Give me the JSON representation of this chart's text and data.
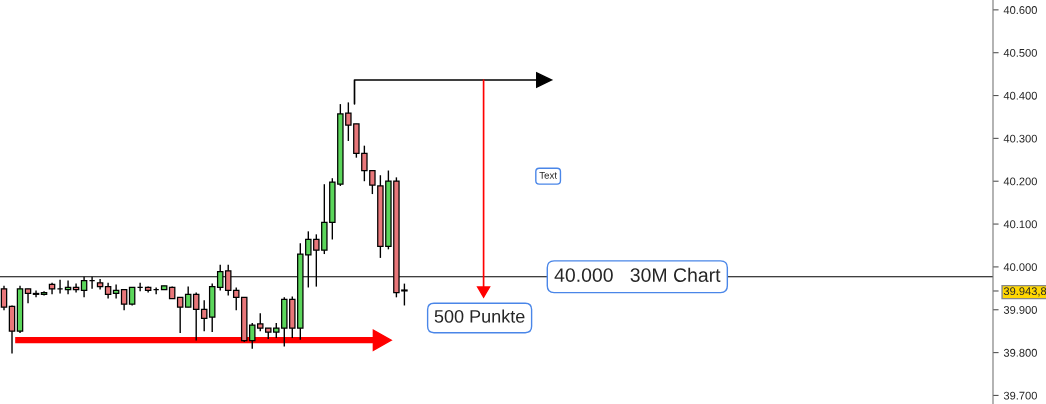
{
  "chart_data": {
    "type": "candlestick",
    "categories": [
      null,
      null,
      null,
      null,
      null,
      null,
      null,
      null,
      null,
      null,
      null,
      null,
      null,
      null,
      null,
      null,
      null,
      null,
      null,
      null,
      null,
      null,
      null,
      null,
      null,
      null,
      null,
      null,
      null,
      null,
      null,
      null,
      null,
      null,
      null,
      null,
      null,
      null,
      null,
      null,
      null,
      null,
      null,
      null,
      null,
      null,
      null,
      null,
      null,
      null,
      null,
      null,
      null,
      null,
      null,
      null,
      null,
      null,
      null,
      null,
      null,
      null,
      null,
      null,
      null,
      null,
      null,
      null,
      null,
      null,
      null,
      null,
      null,
      null,
      null,
      null,
      null,
      null,
      null,
      null,
      null,
      null,
      null,
      null,
      null,
      null,
      null,
      null,
      null,
      null,
      null,
      null,
      null,
      null,
      null,
      null,
      null,
      null,
      null,
      null,
      null,
      null,
      null,
      null,
      null,
      null,
      null,
      null,
      null,
      null,
      null,
      null,
      null,
      null,
      null,
      null,
      null,
      null,
      null,
      null,
      null,
      null,
      null,
      null
    ],
    "ohlc": [
      [
        39949,
        39956,
        39899,
        39906
      ],
      [
        39908,
        39910,
        39798,
        39850
      ],
      [
        39850,
        39956,
        39846,
        39949
      ],
      [
        39949,
        39949,
        39915,
        39938
      ],
      [
        39938,
        39945,
        39929,
        39936
      ],
      [
        39936,
        39943,
        39933,
        39940
      ],
      [
        39959,
        39963,
        39936,
        39949
      ],
      [
        39949,
        39970,
        39938,
        39949
      ],
      [
        39947,
        39968,
        39936,
        39952
      ],
      [
        39952,
        39961,
        39940,
        39947
      ],
      [
        39945,
        39977,
        39929,
        39968
      ],
      [
        39968,
        39977,
        39949,
        39968
      ],
      [
        39963,
        39972,
        39947,
        39954
      ],
      [
        39954,
        39963,
        39926,
        39936
      ],
      [
        39938,
        39959,
        39926,
        39945
      ],
      [
        39947,
        39947,
        39899,
        39913
      ],
      [
        39913,
        39952,
        39910,
        39952
      ],
      [
        39952,
        39963,
        39943,
        39952
      ],
      [
        39952,
        39954,
        39940,
        39945
      ],
      [
        39947,
        39952,
        39936,
        39947
      ],
      [
        39947,
        39956,
        39947,
        39956
      ],
      [
        39952,
        39954,
        39926,
        39926
      ],
      [
        39929,
        39929,
        39846,
        39906
      ],
      [
        39906,
        39954,
        39906,
        39936
      ],
      [
        39936,
        39940,
        39828,
        39901
      ],
      [
        39901,
        39922,
        39850,
        39880
      ],
      [
        39883,
        39961,
        39848,
        39954
      ],
      [
        39952,
        40005,
        39945,
        39989
      ],
      [
        39991,
        40005,
        39933,
        39945
      ],
      [
        39945,
        39952,
        39899,
        39929
      ],
      [
        39929,
        39929,
        39825,
        39828
      ],
      [
        39828,
        39869,
        39809,
        39864
      ],
      [
        39867,
        39892,
        39850,
        39857
      ],
      [
        39857,
        39857,
        39832,
        39848
      ],
      [
        39848,
        39869,
        39834,
        39857
      ],
      [
        39857,
        39929,
        39814,
        39924
      ],
      [
        39924,
        39931,
        39834,
        39857
      ],
      [
        39857,
        40055,
        39830,
        40030
      ],
      [
        40028,
        40083,
        39952,
        40064
      ],
      [
        40064,
        40076,
        39954,
        40039
      ],
      [
        40039,
        40193,
        40030,
        40104
      ],
      [
        40104,
        40207,
        40064,
        40198
      ],
      [
        40193,
        40380,
        40189,
        40357
      ],
      [
        40359,
        40384,
        40294,
        40331
      ],
      [
        40334,
        40334,
        40255,
        40265
      ],
      [
        40265,
        40283,
        40200,
        40225
      ],
      [
        40225,
        40225,
        40170,
        40191
      ],
      [
        40189,
        40214,
        40021,
        40048
      ],
      [
        40048,
        40225,
        40041,
        40200
      ],
      [
        40200,
        40209,
        39929,
        39940
      ],
      [
        39946,
        39961,
        39910,
        39944
      ],
      null,
      null,
      null,
      null,
      null,
      null,
      null,
      null,
      null,
      null,
      null,
      null,
      null,
      null,
      null,
      null,
      null,
      null,
      null,
      null,
      null,
      null,
      null,
      null,
      null,
      null,
      null,
      null,
      null,
      null,
      null,
      null,
      null,
      null,
      null,
      null,
      null,
      null,
      null,
      null,
      null,
      null,
      null,
      null,
      null,
      null,
      null,
      null,
      null,
      null,
      null,
      null,
      null,
      null,
      null,
      null,
      null,
      null,
      null,
      null,
      null,
      null,
      null,
      null,
      null,
      null,
      null,
      null,
      null,
      null,
      null,
      null,
      null
    ],
    "colors": [
      "#e8777a",
      "#e8777a",
      "#5bd65b",
      "#e8777a",
      "#e8777a",
      "#5bd65b",
      "#e8777a",
      "#000000",
      "#5bd65b",
      "#e8777a",
      "#5bd65b",
      "#000000",
      "#e8777a",
      "#e8777a",
      "#5bd65b",
      "#e8777a",
      "#5bd65b",
      "#000000",
      "#e8777a",
      "#000000",
      "#5bd65b",
      "#e8777a",
      "#e8777a",
      "#5bd65b",
      "#e8777a",
      "#e8777a",
      "#5bd65b",
      "#5bd65b",
      "#e8777a",
      "#e8777a",
      "#e8777a",
      "#5bd65b",
      "#e8777a",
      "#e8777a",
      "#5bd65b",
      "#5bd65b",
      "#e8777a",
      "#5bd65b",
      "#5bd65b",
      "#e8777a",
      "#5bd65b",
      "#5bd65b",
      "#5bd65b",
      "#e8777a",
      "#e8777a",
      "#e8777a",
      "#e8777a",
      "#e8777a",
      "#5bd65b",
      "#e8777a",
      "#e8777a",
      null,
      null,
      null,
      null,
      null,
      null,
      null,
      null,
      null,
      null,
      null,
      null,
      null,
      null,
      null,
      null,
      null,
      null,
      null,
      null,
      null,
      null,
      null,
      null,
      null,
      null,
      null,
      null,
      null,
      null,
      null,
      null,
      null,
      null,
      null,
      null,
      null,
      null,
      null,
      null,
      null,
      null,
      null,
      null,
      null,
      null,
      null,
      null,
      null,
      null,
      null,
      null,
      null,
      null,
      null,
      null,
      null,
      null,
      null,
      null,
      null,
      null,
      null,
      null,
      null,
      null,
      null,
      null,
      null,
      null,
      null,
      null,
      null
    ],
    "ylim": [
      39680,
      40623
    ],
    "yticks": [
      {
        "value": 39700,
        "label": "39.700"
      },
      {
        "value": 39800,
        "label": "39.800"
      },
      {
        "value": 39900,
        "label": "39.900"
      },
      {
        "value": 39943.8,
        "label": "39.943,8"
      },
      {
        "value": 40000,
        "label": "40.000"
      },
      {
        "value": 40100,
        "label": "40.100"
      },
      {
        "value": 40200,
        "label": "40.200"
      },
      {
        "value": 40300,
        "label": "40.300"
      },
      {
        "value": 40400,
        "label": "40.400"
      },
      {
        "value": 40500,
        "label": "40.500"
      },
      {
        "value": 40600,
        "label": "40.600"
      }
    ],
    "ref_lines": [
      {
        "axis": "y",
        "value": 39977,
        "label": "40.000   30M Chart",
        "color": "#000000"
      }
    ],
    "annotations": [
      "Text",
      "500 Punkte"
    ],
    "tick_labels": "y",
    "grid": false,
    "legend": false
  }
}
